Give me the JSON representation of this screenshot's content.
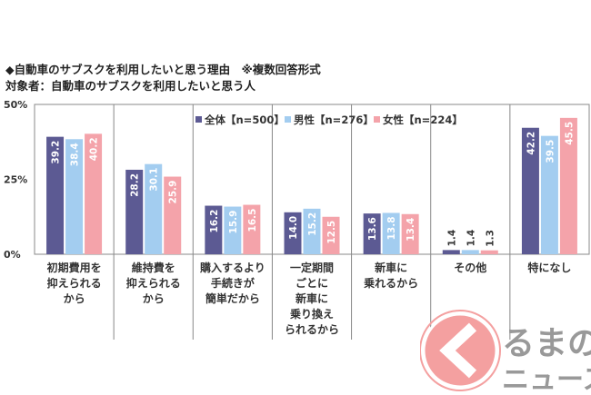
{
  "chart_data": {
    "type": "bar",
    "title": "◆自動車のサブスクを利用したいと思う理由　※複数回答形式",
    "subtitle": "対象者：自動車のサブスクを利用したいと思う人",
    "categories": [
      [
        "初期費用を",
        "抑えられる",
        "から"
      ],
      [
        "維持費を",
        "抑えられる",
        "から"
      ],
      [
        "購入するより",
        "手続きが",
        "簡単だから"
      ],
      [
        "一定期間",
        "ごとに",
        "新車に",
        "乗り換え",
        "られるから"
      ],
      [
        "新車に",
        "乗れるから"
      ],
      [
        "その他"
      ],
      [
        "特になし"
      ]
    ],
    "series": [
      {
        "name": "全体【n=500】",
        "color": "#5c5a93",
        "values": [
          39.2,
          28.2,
          16.2,
          14.0,
          13.6,
          1.4,
          42.2
        ]
      },
      {
        "name": "男性【n=276】",
        "color": "#a3cdf0",
        "values": [
          38.4,
          30.1,
          15.9,
          15.2,
          13.8,
          1.4,
          39.5
        ]
      },
      {
        "name": "女性【n=224】",
        "color": "#f4a3aa",
        "values": [
          40.2,
          25.9,
          16.5,
          12.5,
          13.4,
          1.3,
          45.5
        ]
      }
    ],
    "yticks": [
      "0%",
      "25%",
      "50%"
    ],
    "ylim": [
      0,
      50
    ],
    "legend": "top-center"
  },
  "watermark": {
    "text1": "るまの",
    "text2": "ニュース"
  }
}
